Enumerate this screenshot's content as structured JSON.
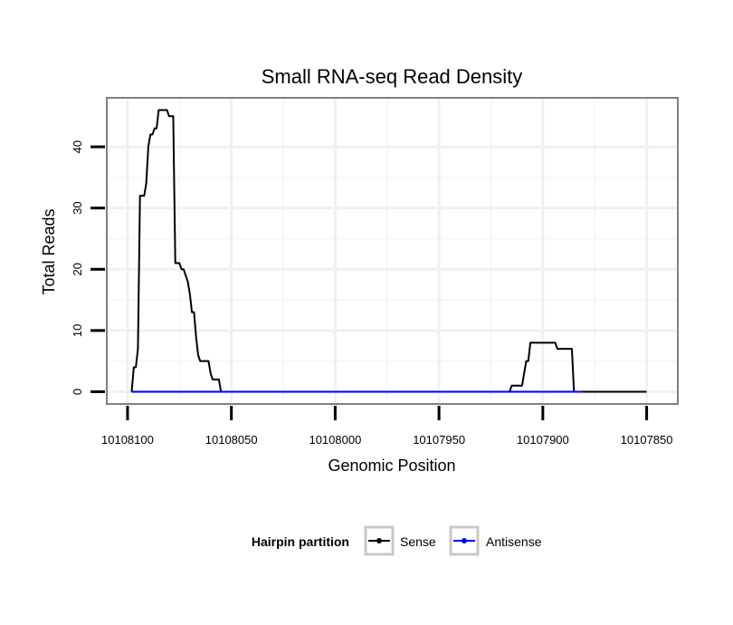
{
  "chart_data": {
    "type": "line",
    "title": "Small RNA-seq Read Density",
    "xlabel": "Genomic Position",
    "ylabel": "Total Reads",
    "xlim": [
      10108110,
      10107835
    ],
    "ylim": [
      -2,
      48
    ],
    "x_reversed": true,
    "x_ticks": [
      {
        "value": 10108100,
        "label": "10108100"
      },
      {
        "value": 10108050,
        "label": "10108050"
      },
      {
        "value": 10108000,
        "label": "10108000"
      },
      {
        "value": 10107950,
        "label": "10107950"
      },
      {
        "value": 10107900,
        "label": "10107900"
      },
      {
        "value": 10107850,
        "label": "10107850"
      }
    ],
    "y_ticks": [
      {
        "value": 0,
        "label": "0"
      },
      {
        "value": 10,
        "label": "10"
      },
      {
        "value": 20,
        "label": "20"
      },
      {
        "value": 30,
        "label": "30"
      },
      {
        "value": 40,
        "label": "40"
      }
    ],
    "grid": true,
    "legend": {
      "title": "Hairpin partition",
      "position": "bottom"
    },
    "series": [
      {
        "name": "Sense",
        "color": "#000000",
        "points": [
          [
            10108098,
            0
          ],
          [
            10108097,
            4
          ],
          [
            10108096,
            4
          ],
          [
            10108095,
            7
          ],
          [
            10108094,
            32
          ],
          [
            10108093,
            32
          ],
          [
            10108092,
            32
          ],
          [
            10108091,
            34
          ],
          [
            10108090,
            40
          ],
          [
            10108089,
            42
          ],
          [
            10108088,
            42
          ],
          [
            10108087,
            43
          ],
          [
            10108086,
            43
          ],
          [
            10108085,
            46
          ],
          [
            10108084,
            46
          ],
          [
            10108083,
            46
          ],
          [
            10108082,
            46
          ],
          [
            10108081,
            46
          ],
          [
            10108080,
            45
          ],
          [
            10108079,
            45
          ],
          [
            10108078,
            45
          ],
          [
            10108077,
            21
          ],
          [
            10108076,
            21
          ],
          [
            10108075,
            21
          ],
          [
            10108074,
            20
          ],
          [
            10108073,
            20
          ],
          [
            10108072,
            19
          ],
          [
            10108071,
            18
          ],
          [
            10108070,
            16
          ],
          [
            10108069,
            13
          ],
          [
            10108068,
            13
          ],
          [
            10108067,
            9
          ],
          [
            10108066,
            6
          ],
          [
            10108065,
            5
          ],
          [
            10108064,
            5
          ],
          [
            10108063,
            5
          ],
          [
            10108062,
            5
          ],
          [
            10108061,
            5
          ],
          [
            10108060,
            3
          ],
          [
            10108059,
            2
          ],
          [
            10108058,
            2
          ],
          [
            10108057,
            2
          ],
          [
            10108056,
            2
          ],
          [
            10108055,
            0
          ],
          [
            10107916,
            0
          ],
          [
            10107915,
            1
          ],
          [
            10107914,
            1
          ],
          [
            10107913,
            1
          ],
          [
            10107912,
            1
          ],
          [
            10107911,
            1
          ],
          [
            10107910,
            1
          ],
          [
            10107909,
            3
          ],
          [
            10107908,
            5
          ],
          [
            10107907,
            5
          ],
          [
            10107906,
            8
          ],
          [
            10107905,
            8
          ],
          [
            10107904,
            8
          ],
          [
            10107903,
            8
          ],
          [
            10107902,
            8
          ],
          [
            10107901,
            8
          ],
          [
            10107900,
            8
          ],
          [
            10107899,
            8
          ],
          [
            10107898,
            8
          ],
          [
            10107897,
            8
          ],
          [
            10107896,
            8
          ],
          [
            10107895,
            8
          ],
          [
            10107894,
            8
          ],
          [
            10107893,
            7
          ],
          [
            10107892,
            7
          ],
          [
            10107891,
            7
          ],
          [
            10107890,
            7
          ],
          [
            10107889,
            7
          ],
          [
            10107888,
            7
          ],
          [
            10107887,
            7
          ],
          [
            10107886,
            7
          ],
          [
            10107885,
            0
          ],
          [
            10107850,
            0
          ]
        ]
      },
      {
        "name": "Antisense",
        "color": "#0000ff",
        "points": [
          [
            10108098,
            0
          ],
          [
            10108050,
            0
          ],
          [
            10107900,
            0
          ],
          [
            10107881,
            0
          ]
        ]
      }
    ]
  }
}
